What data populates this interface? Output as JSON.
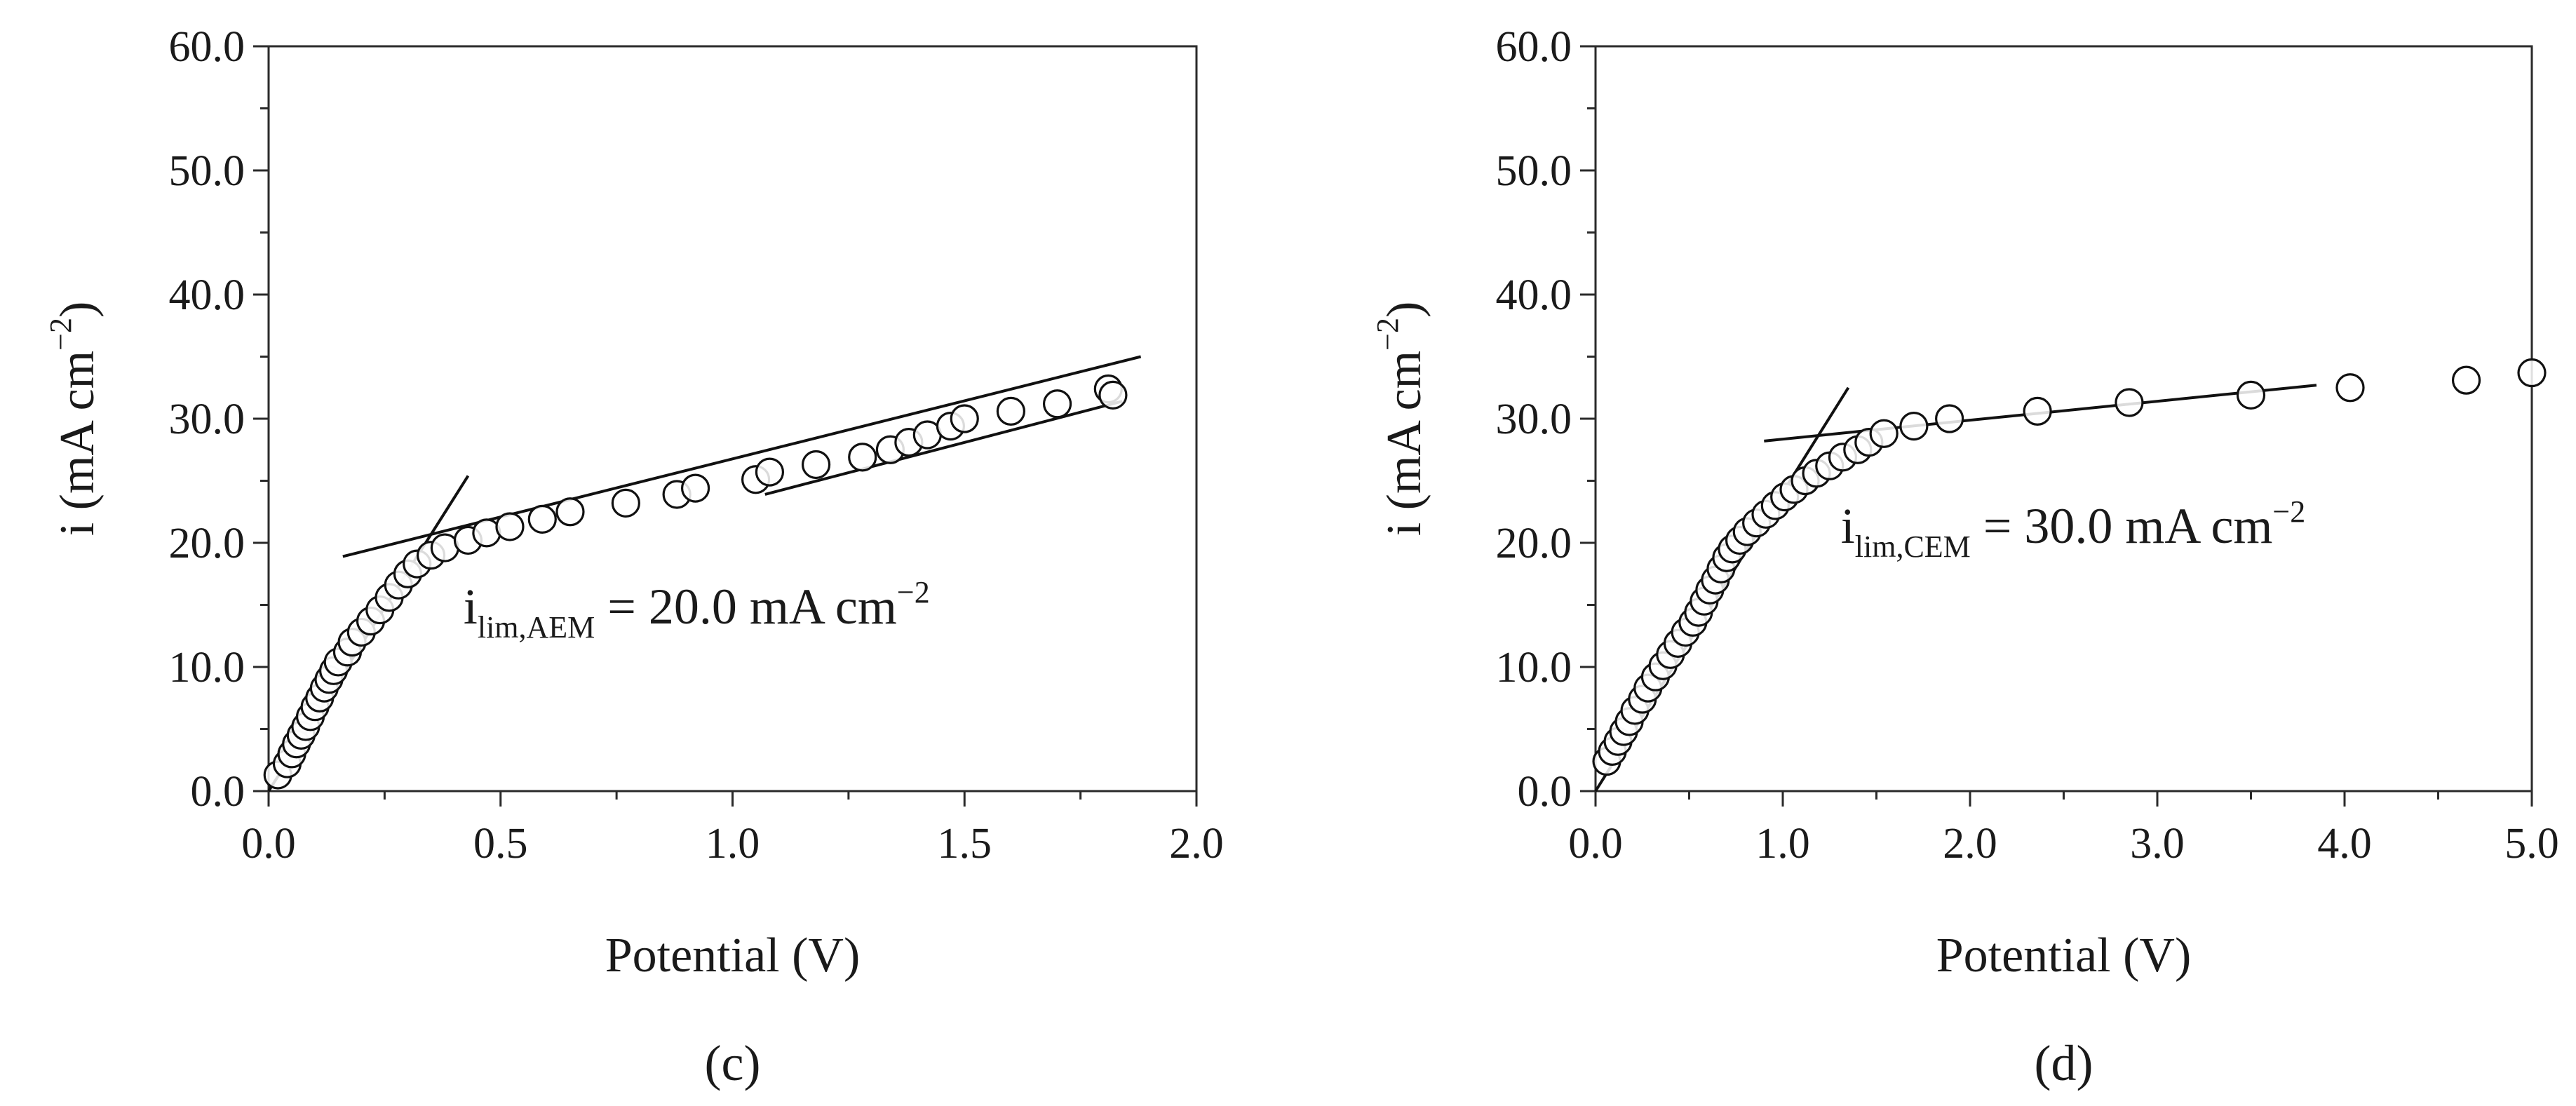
{
  "chart_data": [
    {
      "type": "scatter",
      "panel_label": "(c)",
      "xlabel": "Potential (V)",
      "ylabel": {
        "prefix": "i (mA cm",
        "sup": "−2",
        "suffix": ")"
      },
      "xlim": [
        0,
        2.0
      ],
      "ylim": [
        0,
        60.0
      ],
      "xticks": [
        "0.0",
        "0.5",
        "1.0",
        "1.5",
        "2.0"
      ],
      "xtick_values": [
        0,
        0.5,
        1.0,
        1.5,
        2.0
      ],
      "yticks": [
        "0.0",
        "10.0",
        "20.0",
        "30.0",
        "40.0",
        "50.0",
        "60.0"
      ],
      "ytick_values": [
        0,
        10,
        20,
        30,
        40,
        50,
        60
      ],
      "annotation": {
        "main": "i",
        "sub": "lim,AEM",
        "value": " = 20.0 mA cm",
        "sup": "−2",
        "at": [
          0.42,
          13.5
        ]
      },
      "series": [
        {
          "name": "measured",
          "marker": "open-circle",
          "points": [
            [
              0.02,
              1.3
            ],
            [
              0.04,
              2.2
            ],
            [
              0.05,
              3.0
            ],
            [
              0.06,
              3.8
            ],
            [
              0.07,
              4.5
            ],
            [
              0.08,
              5.2
            ],
            [
              0.09,
              6.0
            ],
            [
              0.1,
              6.8
            ],
            [
              0.11,
              7.5
            ],
            [
              0.12,
              8.3
            ],
            [
              0.13,
              9.0
            ],
            [
              0.14,
              9.7
            ],
            [
              0.15,
              10.4
            ],
            [
              0.17,
              11.2
            ],
            [
              0.18,
              12.0
            ],
            [
              0.2,
              12.8
            ],
            [
              0.22,
              13.7
            ],
            [
              0.24,
              14.6
            ],
            [
              0.26,
              15.6
            ],
            [
              0.28,
              16.6
            ],
            [
              0.3,
              17.5
            ],
            [
              0.32,
              18.3
            ],
            [
              0.35,
              19.0
            ],
            [
              0.38,
              19.6
            ],
            [
              0.43,
              20.2
            ],
            [
              0.47,
              20.8
            ],
            [
              0.52,
              21.3
            ],
            [
              0.59,
              21.9
            ],
            [
              0.65,
              22.5
            ],
            [
              0.77,
              23.2
            ],
            [
              0.88,
              23.9
            ],
            [
              0.92,
              24.4
            ],
            [
              1.05,
              25.1
            ],
            [
              1.08,
              25.7
            ],
            [
              1.18,
              26.3
            ],
            [
              1.28,
              26.9
            ],
            [
              1.34,
              27.5
            ],
            [
              1.38,
              28.1
            ],
            [
              1.42,
              28.7
            ],
            [
              1.47,
              29.4
            ],
            [
              1.5,
              30.0
            ],
            [
              1.6,
              30.6
            ],
            [
              1.7,
              31.2
            ],
            [
              1.81,
              32.4
            ],
            [
              1.82,
              31.9
            ]
          ]
        }
      ],
      "fit_lines": [
        {
          "name": "ohmic-fit",
          "from": [
            0.0,
            0.0
          ],
          "to": [
            0.43,
            25.4
          ]
        },
        {
          "name": "plateau-fit-1",
          "from": [
            0.16,
            18.9
          ],
          "to": [
            1.88,
            35.0
          ]
        },
        {
          "name": "plateau-fit-2",
          "from": [
            1.07,
            23.9
          ],
          "to": [
            1.84,
            31.4
          ]
        }
      ]
    },
    {
      "type": "scatter",
      "panel_label": "(d)",
      "xlabel": "Potential (V)",
      "ylabel": {
        "prefix": "i (mA cm",
        "sup": "−2",
        "suffix": ")"
      },
      "xlim": [
        0,
        5.0
      ],
      "ylim": [
        0,
        60.0
      ],
      "xticks": [
        "0.0",
        "1.0",
        "2.0",
        "3.0",
        "4.0",
        "5.0"
      ],
      "xtick_values": [
        0,
        1.0,
        2.0,
        3.0,
        4.0,
        5.0
      ],
      "yticks": [
        "0.0",
        "10.0",
        "20.0",
        "30.0",
        "40.0",
        "50.0",
        "60.0"
      ],
      "ytick_values": [
        0,
        10,
        20,
        30,
        40,
        50,
        60
      ],
      "annotation": {
        "main": "i",
        "sub": "lim,CEM",
        "value": " = 30.0 mA cm",
        "sup": "−2",
        "at": [
          1.31,
          20.0
        ]
      },
      "series": [
        {
          "name": "measured",
          "marker": "open-circle",
          "points": [
            [
              0.06,
              2.4
            ],
            [
              0.09,
              3.2
            ],
            [
              0.12,
              4.0
            ],
            [
              0.15,
              4.8
            ],
            [
              0.18,
              5.6
            ],
            [
              0.21,
              6.5
            ],
            [
              0.25,
              7.4
            ],
            [
              0.28,
              8.3
            ],
            [
              0.32,
              9.2
            ],
            [
              0.36,
              10.1
            ],
            [
              0.4,
              11.0
            ],
            [
              0.44,
              11.9
            ],
            [
              0.48,
              12.8
            ],
            [
              0.52,
              13.6
            ],
            [
              0.55,
              14.4
            ],
            [
              0.58,
              15.3
            ],
            [
              0.61,
              16.2
            ],
            [
              0.64,
              17.0
            ],
            [
              0.67,
              17.9
            ],
            [
              0.7,
              18.8
            ],
            [
              0.73,
              19.5
            ],
            [
              0.77,
              20.2
            ],
            [
              0.81,
              20.9
            ],
            [
              0.86,
              21.6
            ],
            [
              0.91,
              22.3
            ],
            [
              0.96,
              23.0
            ],
            [
              1.01,
              23.7
            ],
            [
              1.06,
              24.3
            ],
            [
              1.12,
              25.0
            ],
            [
              1.18,
              25.6
            ],
            [
              1.25,
              26.2
            ],
            [
              1.32,
              26.9
            ],
            [
              1.4,
              27.5
            ],
            [
              1.46,
              28.1
            ],
            [
              1.54,
              28.8
            ],
            [
              1.7,
              29.4
            ],
            [
              1.89,
              30.0
            ],
            [
              2.36,
              30.6
            ],
            [
              2.85,
              31.3
            ],
            [
              3.5,
              31.9
            ],
            [
              4.03,
              32.5
            ],
            [
              4.65,
              33.1
            ],
            [
              5.0,
              33.7
            ]
          ]
        }
      ],
      "fit_lines": [
        {
          "name": "ohmic-fit",
          "from": [
            0.0,
            0.0
          ],
          "to": [
            1.35,
            32.5
          ]
        },
        {
          "name": "plateau-fit",
          "from": [
            0.9,
            28.2
          ],
          "to": [
            3.85,
            32.7
          ]
        }
      ]
    }
  ]
}
